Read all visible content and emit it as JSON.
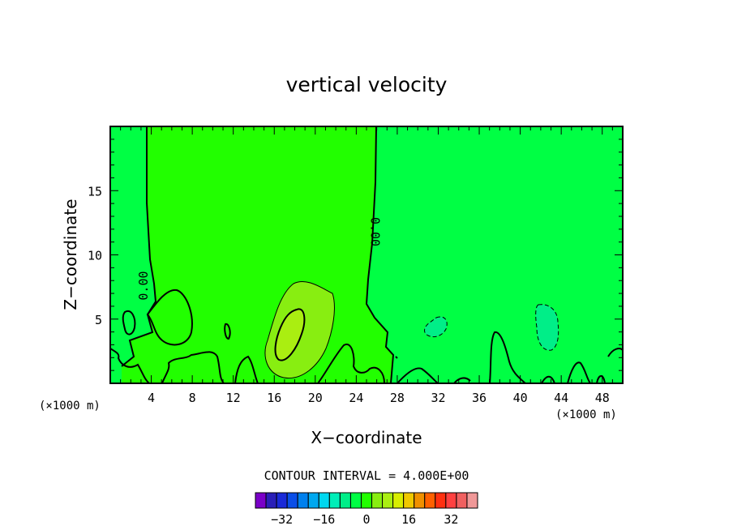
{
  "chart_data": {
    "type": "contour",
    "title": "vertical velocity",
    "xlabel": "X−coordinate",
    "ylabel": "Z−coordinate",
    "x_units_left": "(×1000 m)",
    "x_units_right": "(×1000 m)",
    "xlim": [
      0,
      50
    ],
    "ylim": [
      0,
      20
    ],
    "x_ticks": [
      4,
      8,
      12,
      16,
      20,
      24,
      28,
      32,
      36,
      40,
      44,
      48
    ],
    "x_tick_labels": [
      "4",
      "8",
      "12",
      "16",
      "20",
      "24",
      "28",
      "32",
      "36",
      "40",
      "44",
      "48"
    ],
    "y_ticks": [
      5,
      10,
      15
    ],
    "y_tick_labels": [
      "5",
      "10",
      "15"
    ],
    "contour_interval_text": "CONTOUR INTERVAL = 4.000E+00",
    "contour_labels": [
      {
        "text": "0.00",
        "x": 3.3,
        "z": 7.6,
        "rotation": -90
      },
      {
        "text": "0.00",
        "x": 25.8,
        "z": 11.8,
        "rotation": 90
      }
    ],
    "regions": [
      {
        "level": "0 to 4",
        "color": "#22ff00",
        "x_range": [
          3.5,
          26
        ],
        "z_range": [
          0,
          20
        ]
      },
      {
        "level": "4 to 8",
        "color": "#88ee11",
        "center": [
          19,
          3.5
        ]
      },
      {
        "level": "8 to 12",
        "color": "#aaee11",
        "center": [
          17.8,
          3.5
        ]
      },
      {
        "level": "-4 to 0",
        "color": "#00ff44",
        "x_range": [
          0,
          50
        ],
        "z_range": [
          0,
          20
        ]
      },
      {
        "level": "-8 to -4",
        "color": "#00ee88",
        "center": [
          42.5,
          4.5
        ]
      },
      {
        "level": "-8 to -4",
        "color": "#00ee88",
        "center": [
          31.5,
          4.3
        ]
      }
    ],
    "colorbar": {
      "colors": [
        "#7a00c8",
        "#2a1fb8",
        "#1a2ad8",
        "#0a4ee8",
        "#0080ee",
        "#00a8f0",
        "#00d8f0",
        "#00eeb8",
        "#00ee88",
        "#00ff44",
        "#22ff00",
        "#88ee11",
        "#aaee11",
        "#d8ee00",
        "#f0c800",
        "#f09000",
        "#ff6000",
        "#ff3010",
        "#ff4040",
        "#f06060",
        "#f09898"
      ],
      "tick_values": [
        -32,
        -16,
        0,
        16,
        32
      ],
      "tick_labels": [
        "−32",
        "−16",
        "0",
        "16",
        "32"
      ],
      "min": -42,
      "max": 42
    }
  }
}
